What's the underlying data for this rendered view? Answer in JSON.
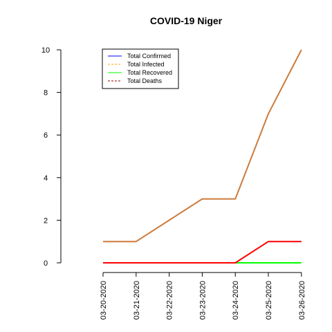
{
  "chart_data": {
    "type": "line",
    "title": "COVID-19 Niger",
    "xlabel": "",
    "ylabel": "",
    "categories": [
      "03-20-2020",
      "03-21-2020",
      "03-22-2020",
      "03-23-2020",
      "03-24-2020",
      "03-25-2020",
      "03-26-2020"
    ],
    "ylim": [
      0,
      10
    ],
    "yticks": [
      "0",
      "2",
      "4",
      "6",
      "8",
      "10"
    ],
    "grid": false,
    "legend_position": "top-left",
    "series": [
      {
        "name": "Total Confirmed",
        "values": [
          1,
          1,
          2,
          3,
          3,
          7,
          10
        ],
        "color": "#0000ff",
        "dash": "solid"
      },
      {
        "name": "Total Infected",
        "values": [
          1,
          1,
          2,
          3,
          3,
          7,
          10
        ],
        "color": "#ffa500",
        "dash": "dashed"
      },
      {
        "name": "Total Recovered",
        "values": [
          0,
          0,
          0,
          0,
          0,
          0,
          0
        ],
        "color": "#00ff00",
        "dash": "solid"
      },
      {
        "name": "Total Deaths",
        "values": [
          0,
          0,
          0,
          0,
          0,
          1,
          1
        ],
        "color": "#8b0000",
        "dash": "dashed"
      }
    ],
    "rendered_lines": [
      {
        "name": "Total Recovered",
        "values": [
          0,
          0,
          0,
          0,
          0,
          0,
          0
        ],
        "color": "#00ff00"
      },
      {
        "name": "Total Deaths",
        "values": [
          0,
          0,
          0,
          0,
          0,
          1,
          1
        ],
        "color": "#ff0000"
      },
      {
        "name": "Total Confirmed",
        "values": [
          1,
          1,
          2,
          3,
          3,
          7,
          10
        ],
        "color": "#cc7a3a"
      }
    ]
  }
}
